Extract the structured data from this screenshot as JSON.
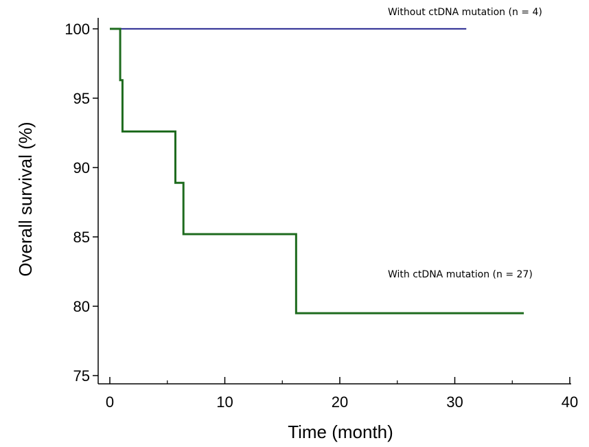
{
  "chart_data": {
    "type": "line",
    "step": true,
    "xlabel": "Time (month)",
    "ylabel": "Overall survival (%)",
    "xlim": [
      0,
      40
    ],
    "ylim": [
      75,
      100
    ],
    "x_ticks": [
      0,
      10,
      20,
      30,
      40
    ],
    "y_ticks": [
      75,
      80,
      85,
      90,
      95,
      100
    ],
    "grid": false,
    "series": [
      {
        "name": "Without ctDNA mutation (n = 4)",
        "color": "#3a3a9a",
        "x": [
          0,
          31
        ],
        "y": [
          100,
          100
        ]
      },
      {
        "name": "With ctDNA mutation (n = 27)",
        "color": "#1e6b1e",
        "x": [
          0,
          0.9,
          1.1,
          5.7,
          6.4,
          16.2,
          36
        ],
        "y": [
          100,
          96.3,
          92.6,
          88.9,
          85.2,
          79.5,
          79.5
        ]
      }
    ]
  }
}
